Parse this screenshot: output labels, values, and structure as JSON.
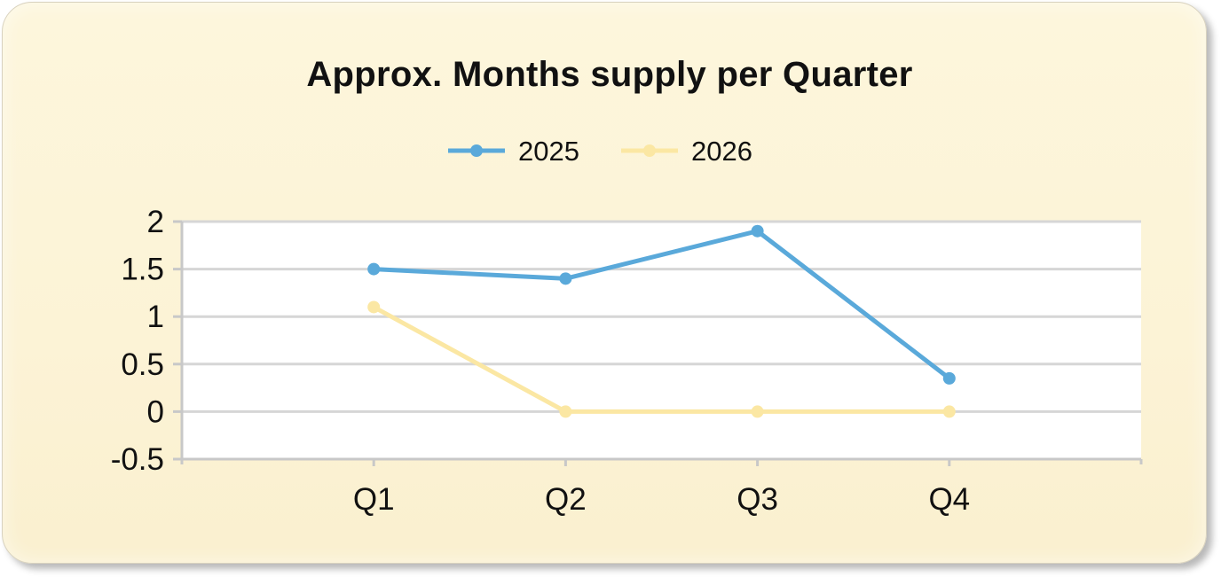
{
  "chart_data": {
    "type": "line",
    "title": "Approx. Months supply per Quarter",
    "categories": [
      "Q1",
      "Q2",
      "Q3",
      "Q4"
    ],
    "series": [
      {
        "name": "2025",
        "values": [
          1.5,
          1.4,
          1.9,
          0.35
        ],
        "color": "#5aa9da"
      },
      {
        "name": "2026",
        "values": [
          1.1,
          0,
          0,
          0
        ],
        "color": "#fbe7a3"
      }
    ],
    "ylim": [
      -0.5,
      2
    ],
    "yticks": [
      "2",
      "1.5",
      "1",
      "0.5",
      "0",
      "-0.5"
    ],
    "ytick_values": [
      2,
      1.5,
      1,
      0.5,
      0,
      -0.5
    ],
    "xlabel": "",
    "ylabel": "",
    "grid": true,
    "legend_position": "top-center"
  }
}
